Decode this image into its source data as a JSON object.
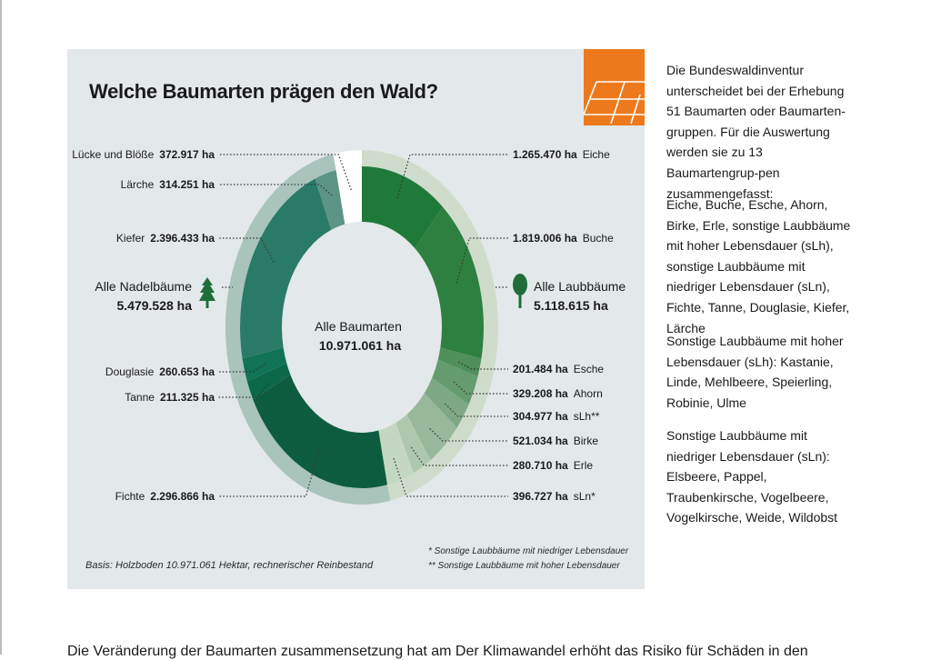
{
  "title": "Welche Baumarten prägen den Wald?",
  "center": {
    "label": "Alle Baumarten",
    "value": "10.971.061 ha"
  },
  "groups": {
    "conifers": {
      "label": "Alle Nadelbäume",
      "value": "5.479.528 ha",
      "icon": "conifer-tree-icon"
    },
    "broadleaf": {
      "label": "Alle Laubbäume",
      "value": "5.118.615 ha",
      "icon": "deciduous-tree-icon"
    }
  },
  "chart_data": {
    "type": "pie",
    "title": "Welche Baumarten prägen den Wald?",
    "total_label": "Alle Baumarten",
    "total_value": 10971061,
    "unit": "ha",
    "slices": [
      {
        "name": "Eiche",
        "value": 1265470,
        "value_label": "1.265.470 ha",
        "group": "Laubbäume",
        "color": "#1f7a3a"
      },
      {
        "name": "Buche",
        "value": 1819006,
        "value_label": "1.819.006 ha",
        "group": "Laubbäume",
        "color": "#2e8040"
      },
      {
        "name": "Esche",
        "value": 201484,
        "value_label": "201.484 ha",
        "group": "Laubbäume",
        "color": "#4e8f5a"
      },
      {
        "name": "Ahorn",
        "value": 329208,
        "value_label": "329.208 ha",
        "group": "Laubbäume",
        "color": "#659c6d"
      },
      {
        "name": "sLh**",
        "value": 304977,
        "value_label": "304.977 ha",
        "group": "Laubbäume",
        "color": "#7ea884"
      },
      {
        "name": "Birke",
        "value": 521034,
        "value_label": "521.034 ha",
        "group": "Laubbäume",
        "color": "#97b89a"
      },
      {
        "name": "Erle",
        "value": 280710,
        "value_label": "280.710 ha",
        "group": "Laubbäume",
        "color": "#aec8ae"
      },
      {
        "name": "sLn*",
        "value": 396727,
        "value_label": "396.727 ha",
        "group": "Laubbäume",
        "color": "#c4d7c1"
      },
      {
        "name": "Fichte",
        "value": 2296866,
        "value_label": "2.296.866 ha",
        "group": "Nadelbäume",
        "color": "#0e5c40"
      },
      {
        "name": "Tanne",
        "value": 211325,
        "value_label": "211.325 ha",
        "group": "Nadelbäume",
        "color": "#0b6848"
      },
      {
        "name": "Douglasie",
        "value": 260653,
        "value_label": "260.653 ha",
        "group": "Nadelbäume",
        "color": "#0f7354"
      },
      {
        "name": "Kiefer",
        "value": 2396433,
        "value_label": "2.396.433 ha",
        "group": "Nadelbäume",
        "color": "#2a7a68"
      },
      {
        "name": "Lärche",
        "value": 314251,
        "value_label": "314.251 ha",
        "group": "Nadelbäume",
        "color": "#5c9485"
      },
      {
        "name": "Lücke und Blöße",
        "value": 372917,
        "value_label": "372.917 ha",
        "group": "Lücke",
        "color": "#ffffff"
      }
    ],
    "outer_ring": [
      {
        "name": "Alle Laubbäume",
        "value": 5118615,
        "color": "#cfdccb"
      },
      {
        "name": "Alle Nadelbäume",
        "value": 5479528,
        "color": "#a9c4bb"
      }
    ]
  },
  "footnote": {
    "basis": "Basis: Holzboden 10.971.061 Hektar, rechnerischer Reinbestand",
    "star1": "*  Sonstige Laubbäume mit niedriger Lebensdauer",
    "star2": "** Sonstige Laubbäume mit hoher Lebensdauer"
  },
  "sidebar": {
    "p1": "Die Bundeswaldinventur unterscheidet bei der Erhebung 51 Baumarten oder Baumarten-gruppen. Für die Auswertung werden sie zu 13 Baumartengrup-pen zusammengefasst:",
    "p2": "Eiche, Buche, Esche, Ahorn, Birke, Erle, sonstige Laubbäume mit hoher Lebensdauer (sLh), sonstige Laubbäume mit niedriger Lebensdauer (sLn), Fichte, Tanne, Douglasie, Kiefer, Lärche",
    "p3": "Sonstige Laubbäume mit hoher Lebensdauer (sLh): Kastanie, Linde, Mehlbeere, Speierling, Robinie, Ulme",
    "p4": "Sonstige Laubbäume mit niedriger Lebensdauer (sLn): Elsbeere, Pappel, Traubenkirsche, Vogelbeere, Vogelkirsche, Weide, Wildobst"
  },
  "bottom_text": "Die Veränderung der Baumarten zusammensetzung hat am Der Klimawandel erhöht das Risiko für Schäden in den"
}
